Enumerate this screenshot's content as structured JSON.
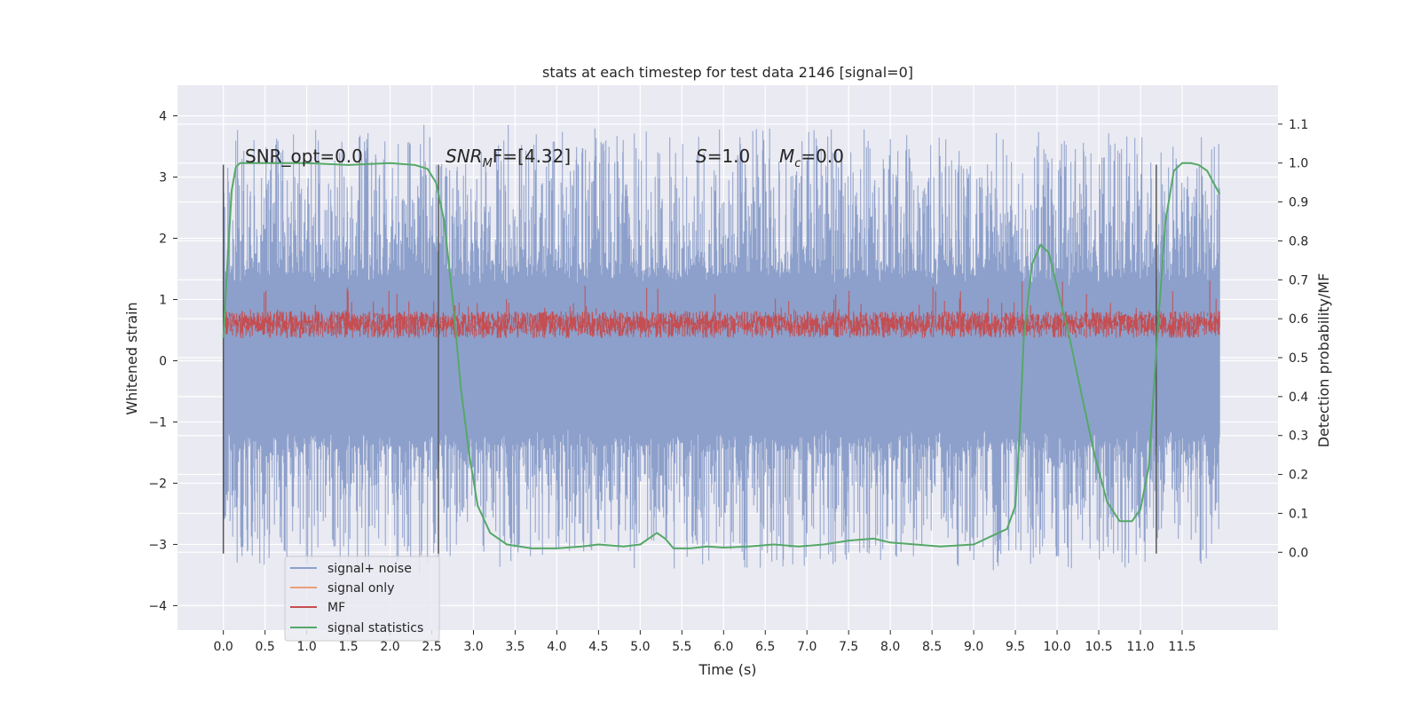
{
  "chart_data": {
    "type": "line",
    "title": "stats at each timestep for test data 2146 [signal=0]",
    "xlabel": "Time (s)",
    "ylabel": "Whitened strain",
    "y2label": "Detection probability/MF",
    "xlim": [
      -0.55,
      12.65
    ],
    "ylim": [
      -4.4,
      4.5
    ],
    "y2lim": [
      -0.2,
      1.2
    ],
    "xticks": [
      0.0,
      0.5,
      1.0,
      1.5,
      2.0,
      2.5,
      3.0,
      3.5,
      4.0,
      4.5,
      5.0,
      5.5,
      6.0,
      6.5,
      7.0,
      7.5,
      8.0,
      8.5,
      9.0,
      9.5,
      10.0,
      10.5,
      11.0,
      11.5
    ],
    "xtick_labels": [
      "0.0",
      "0.5",
      "1.0",
      "1.5",
      "2.0",
      "2.5",
      "3.0",
      "3.5",
      "4.0",
      "4.5",
      "5.0",
      "5.5",
      "6.0",
      "6.5",
      "7.0",
      "7.5",
      "8.0",
      "8.5",
      "9.0",
      "9.5",
      "10.0",
      "10.5",
      "11.0",
      "11.5"
    ],
    "yticks": [
      4,
      3,
      2,
      1,
      0,
      -1,
      -2,
      -3,
      -4
    ],
    "ytick_labels": [
      "4",
      "3",
      "2",
      "1",
      "0",
      "−1",
      "−2",
      "−3",
      "−4"
    ],
    "y2ticks": [
      1.1,
      1.0,
      0.9,
      0.8,
      0.7,
      0.6,
      0.5,
      0.4,
      0.3,
      0.2,
      0.1,
      0.0
    ],
    "y2tick_labels": [
      "1.1",
      "1.0",
      "0.9",
      "0.8",
      "0.7",
      "0.6",
      "0.5",
      "0.4",
      "0.3",
      "0.2",
      "0.1",
      "0.0"
    ],
    "grid": true,
    "legend_position": "lower-left",
    "annotations": {
      "snr_opt": "SNR_opt=0.0",
      "snr_mf_prefix": "SNR",
      "snr_mf_sub": "M",
      "snr_mf_suffix": "F=[4.32]",
      "s_symbol": "S",
      "s_value": "=1.0",
      "mc_symbol": "M",
      "mc_sub": "c",
      "mc_value": "=0.0"
    },
    "vertical_lines_x": [
      0.0,
      2.58,
      11.19
    ],
    "vertical_lines_y": [
      -3.15,
      3.2
    ],
    "series": [
      {
        "name": "signal+ noise",
        "color": "#8da0cb",
        "style": "noise",
        "t_range": [
          0.0,
          11.95
        ],
        "envelope_upper_mean": 1.35,
        "envelope_lower_mean": -1.4,
        "y_max": 4.1,
        "y_min": -4.0
      },
      {
        "name": "signal only",
        "color": "#e8a07c",
        "values": []
      },
      {
        "name": "MF",
        "color": "#c44e52",
        "style": "noise",
        "t_range": [
          0.0,
          11.95
        ],
        "band": [
          0.05,
          0.65
        ]
      },
      {
        "name": "signal statistics",
        "color": "#55a868",
        "axis": "right",
        "x": [
          0.0,
          0.05,
          0.1,
          0.15,
          0.2,
          0.3,
          0.5,
          1.0,
          1.5,
          2.0,
          2.3,
          2.45,
          2.55,
          2.65,
          2.75,
          2.85,
          2.95,
          3.05,
          3.2,
          3.4,
          3.7,
          4.0,
          4.3,
          4.5,
          4.8,
          5.0,
          5.1,
          5.2,
          5.3,
          5.4,
          5.6,
          5.8,
          6.0,
          6.3,
          6.6,
          6.9,
          7.2,
          7.5,
          7.8,
          8.0,
          8.3,
          8.6,
          9.0,
          9.2,
          9.4,
          9.5,
          9.55,
          9.6,
          9.7,
          9.8,
          9.9,
          10.0,
          10.15,
          10.3,
          10.45,
          10.6,
          10.75,
          10.9,
          11.0,
          11.1,
          11.2,
          11.3,
          11.4,
          11.5,
          11.6,
          11.7,
          11.8,
          11.95
        ],
        "values": [
          0.55,
          0.75,
          0.93,
          0.99,
          1.0,
          1.0,
          1.0,
          1.0,
          0.995,
          1.0,
          0.995,
          0.985,
          0.95,
          0.85,
          0.65,
          0.42,
          0.25,
          0.12,
          0.05,
          0.02,
          0.01,
          0.01,
          0.015,
          0.02,
          0.015,
          0.02,
          0.035,
          0.05,
          0.035,
          0.01,
          0.01,
          0.015,
          0.012,
          0.015,
          0.02,
          0.015,
          0.02,
          0.03,
          0.035,
          0.025,
          0.02,
          0.015,
          0.02,
          0.04,
          0.06,
          0.12,
          0.3,
          0.55,
          0.74,
          0.79,
          0.77,
          0.68,
          0.55,
          0.4,
          0.25,
          0.13,
          0.08,
          0.08,
          0.11,
          0.22,
          0.55,
          0.85,
          0.98,
          1.0,
          1.0,
          0.995,
          0.98,
          0.92
        ]
      }
    ]
  }
}
